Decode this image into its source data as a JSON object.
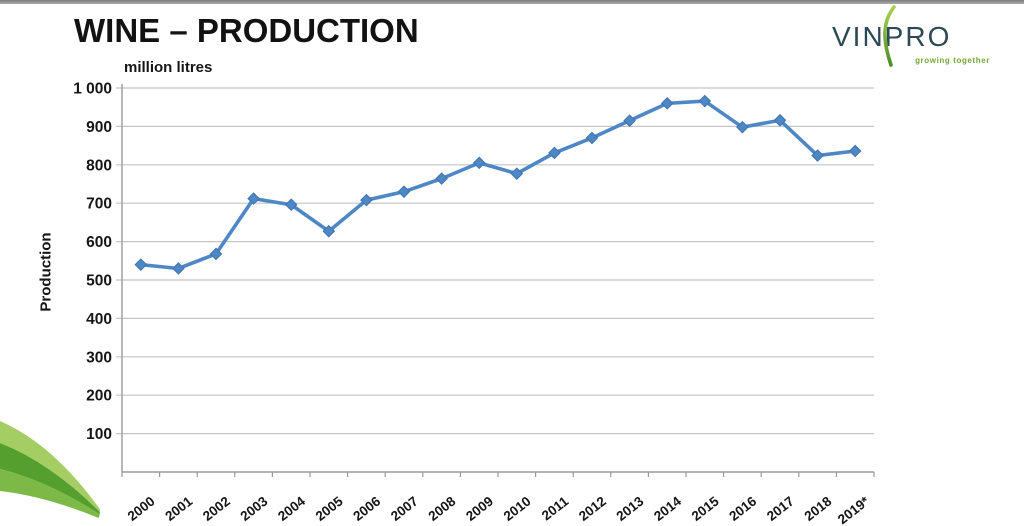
{
  "slide": {
    "title": "WINE – PRODUCTION",
    "units_label": "million litres"
  },
  "logo": {
    "text": "VINPRO",
    "tagline": "growing together"
  },
  "colors": {
    "line": "#4e87c6",
    "marker_edge": "#3f74ad",
    "gridline": "#c4c4c4",
    "axis": "#9a9a9a",
    "tick_text": "#161616",
    "swoosh_light": "#a4ce64",
    "swoosh_dark": "#549f2d",
    "swoosh_mid": "#7cb947",
    "logo_text": "#2b4a55",
    "logo_tagline": "#73a937",
    "leaf_top": "#a9d154",
    "leaf_bottom": "#4c8f2a"
  },
  "chart_data": {
    "type": "line",
    "title": "WINE – PRODUCTION",
    "subtitle": "million litres",
    "xlabel": "",
    "ylabel": "Production",
    "ylim": [
      0,
      1000
    ],
    "ytick_step": 100,
    "ytick_labels": [
      "1 000",
      "900",
      "800",
      "700",
      "600",
      "500",
      "400",
      "300",
      "200",
      "100"
    ],
    "grid": true,
    "legend": false,
    "marker": "diamond",
    "categories": [
      "2000",
      "2001",
      "2002",
      "2003",
      "2004",
      "2005",
      "2006",
      "2007",
      "2008",
      "2009",
      "2010",
      "2011",
      "2012",
      "2013",
      "2014",
      "2015",
      "2016",
      "2017",
      "2018",
      "2019*"
    ],
    "values": [
      540,
      530,
      568,
      712,
      696,
      627,
      708,
      730,
      764,
      805,
      777,
      831,
      870,
      915,
      960,
      966,
      898,
      916,
      824,
      836
    ]
  }
}
